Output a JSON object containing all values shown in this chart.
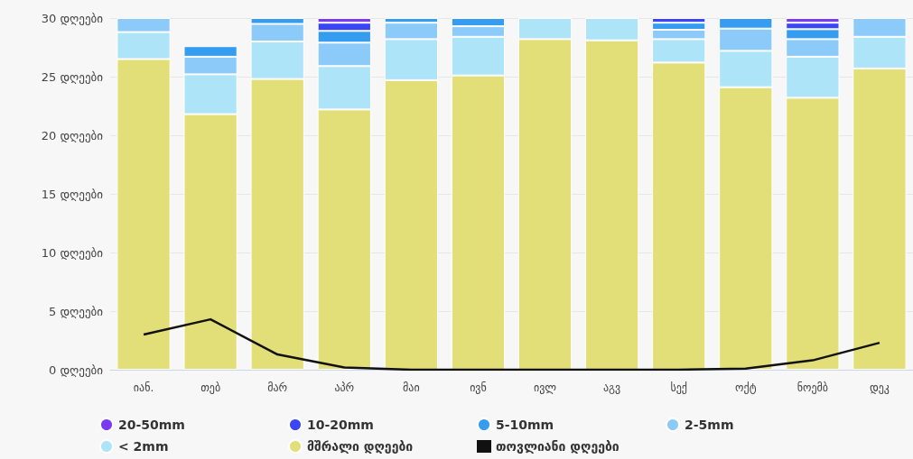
{
  "chart_data": {
    "type": "bar",
    "stacked": true,
    "categories": [
      "იან.",
      "თებ",
      "მარ",
      "აპრ",
      "მაი",
      "ივნ",
      "ივლ",
      "აგვ",
      "სექ",
      "ოქტ",
      "ნოემბ",
      "დეკ"
    ],
    "series": [
      {
        "name": "მშრალი დღეები",
        "color": "#e3df78",
        "values": [
          26.5,
          21.8,
          24.8,
          22.2,
          24.7,
          25.1,
          28.2,
          28.1,
          26.2,
          24.1,
          23.2,
          25.7
        ]
      },
      {
        "name": "< 2mm",
        "color": "#aee4f8",
        "values": [
          2.3,
          3.4,
          3.2,
          3.7,
          3.5,
          3.3,
          1.8,
          1.9,
          2.0,
          3.1,
          3.5,
          2.7
        ]
      },
      {
        "name": "2-5mm",
        "color": "#8ccaf9",
        "values": [
          1.2,
          1.5,
          1.5,
          2.0,
          1.4,
          0.9,
          0,
          0,
          0.8,
          1.9,
          1.5,
          1.6
        ]
      },
      {
        "name": "5-10mm",
        "color": "#359cf0",
        "values": [
          0,
          0.9,
          0.5,
          1.0,
          0.4,
          0.7,
          0,
          0,
          0.6,
          0.9,
          0.85,
          0
        ]
      },
      {
        "name": "10-20mm",
        "color": "#3a46f5",
        "values": [
          0,
          0,
          0,
          0.7,
          0,
          0,
          0,
          0,
          0.4,
          0,
          0.55,
          0
        ]
      },
      {
        "name": "20-50mm",
        "color": "#7a3bf0",
        "values": [
          0,
          0,
          0,
          0.4,
          0,
          0,
          0,
          0,
          0,
          0,
          0.4,
          0
        ]
      },
      {
        "name": "თოვლიანი დღეები",
        "type": "line",
        "color": "#111111",
        "marker": "none",
        "values": [
          3.0,
          4.3,
          1.3,
          0.2,
          0,
          0,
          0,
          0,
          0,
          0.1,
          0.8,
          2.3
        ]
      }
    ],
    "ylim": [
      0,
      30
    ],
    "yticks": [
      {
        "value": 0,
        "label": "0 დღეები"
      },
      {
        "value": 5,
        "label": "5 დღეები"
      },
      {
        "value": 10,
        "label": "10 დღეები"
      },
      {
        "value": 15,
        "label": "15 დღეები"
      },
      {
        "value": 20,
        "label": "20 დღეები"
      },
      {
        "value": 25,
        "label": "25 დღეები"
      },
      {
        "value": 30,
        "label": "30 დღეები"
      }
    ],
    "grid": "y",
    "legend": "bottom left"
  }
}
